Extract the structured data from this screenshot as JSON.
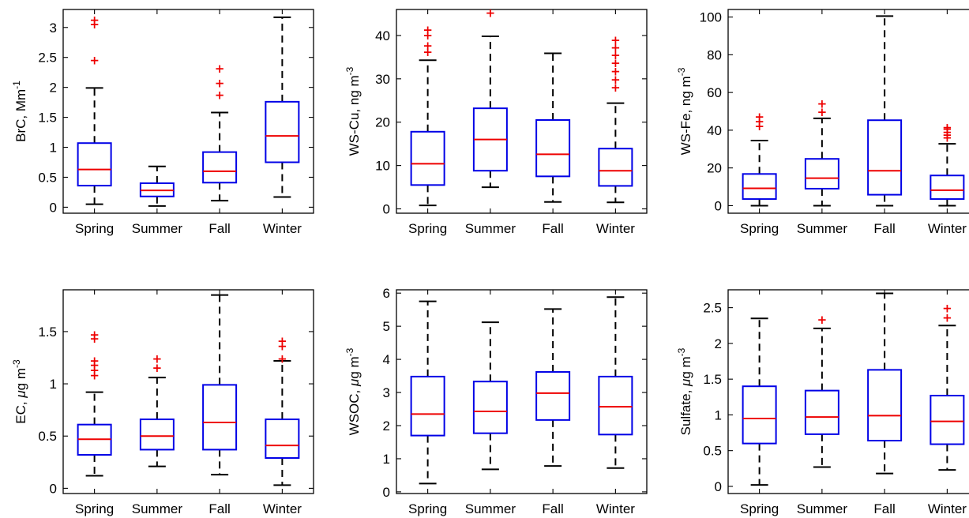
{
  "chart_data": [
    {
      "type": "box",
      "ylabel": {
        "base": "BrC, Mm",
        "sup": "-1",
        "mu": false
      },
      "ylim": [
        -0.1,
        3.3
      ],
      "yticks": [
        0,
        0.5,
        1,
        1.5,
        2,
        2.5,
        3
      ],
      "ytick_labels": [
        "0",
        "0.5",
        "1",
        "1.5",
        "2",
        "2.5",
        "3"
      ],
      "categories": [
        "Spring",
        "Summer",
        "Fall",
        "Winter"
      ],
      "boxes": [
        {
          "low": 0.05,
          "q1": 0.36,
          "median": 0.63,
          "q3": 1.07,
          "high": 1.99,
          "outliers": [
            2.45,
            3.05,
            3.12
          ]
        },
        {
          "low": 0.02,
          "q1": 0.18,
          "median": 0.28,
          "q3": 0.4,
          "high": 0.68,
          "outliers": []
        },
        {
          "low": 0.11,
          "q1": 0.41,
          "median": 0.6,
          "q3": 0.92,
          "high": 1.58,
          "outliers": [
            1.87,
            2.07,
            2.31
          ]
        },
        {
          "low": 0.17,
          "q1": 0.75,
          "median": 1.19,
          "q3": 1.76,
          "high": 3.17,
          "outliers": []
        }
      ]
    },
    {
      "type": "box",
      "ylabel": {
        "base": "WS-Cu, ng m",
        "sup": "-3",
        "mu": false
      },
      "ylim": [
        -1,
        46
      ],
      "yticks": [
        0,
        10,
        20,
        30,
        40
      ],
      "ytick_labels": [
        "0",
        "10",
        "20",
        "30",
        "40"
      ],
      "categories": [
        "Spring",
        "Summer",
        "Fall",
        "Winter"
      ],
      "boxes": [
        {
          "low": 0.8,
          "q1": 5.5,
          "median": 10.4,
          "q3": 17.8,
          "high": 34.3,
          "outliers": [
            36.2,
            37.6,
            40.0,
            41.3
          ]
        },
        {
          "low": 5.0,
          "q1": 8.8,
          "median": 16.0,
          "q3": 23.2,
          "high": 39.8,
          "outliers": [
            45.2
          ]
        },
        {
          "low": 1.6,
          "q1": 7.5,
          "median": 12.6,
          "q3": 20.5,
          "high": 35.9,
          "outliers": []
        },
        {
          "low": 1.5,
          "q1": 5.3,
          "median": 8.8,
          "q3": 13.9,
          "high": 24.4,
          "outliers": [
            28.0,
            29.8,
            31.7,
            33.6,
            35.4,
            37.2,
            38.9
          ]
        }
      ]
    },
    {
      "type": "box",
      "ylabel": {
        "base": "WS-Fe, ng m",
        "sup": "-3",
        "mu": false
      },
      "ylim": [
        -4,
        104
      ],
      "yticks": [
        0,
        20,
        40,
        60,
        80,
        100
      ],
      "ytick_labels": [
        "0",
        "20",
        "40",
        "60",
        "80",
        "100"
      ],
      "categories": [
        "Spring",
        "Summer",
        "Fall",
        "Winter"
      ],
      "boxes": [
        {
          "low": 0,
          "q1": 3.5,
          "median": 9.2,
          "q3": 16.8,
          "high": 34.5,
          "outliers": [
            42,
            44.5,
            47
          ]
        },
        {
          "low": 0,
          "q1": 9.0,
          "median": 14.6,
          "q3": 24.8,
          "high": 46.3,
          "outliers": [
            49.5,
            54
          ]
        },
        {
          "low": 0,
          "q1": 5.8,
          "median": 18.5,
          "q3": 45.3,
          "high": 100.5,
          "outliers": []
        },
        {
          "low": 0,
          "q1": 3.5,
          "median": 8.2,
          "q3": 16.0,
          "high": 32.8,
          "outliers": [
            36,
            37.5,
            39,
            40.5,
            41.5
          ]
        }
      ]
    },
    {
      "type": "box",
      "ylabel": {
        "base": "EC, ",
        "mu": true,
        "after": "g m",
        "sup": "-3"
      },
      "ylim": [
        -0.05,
        1.9
      ],
      "yticks": [
        0,
        0.5,
        1,
        1.5
      ],
      "ytick_labels": [
        "0",
        "0.5",
        "1",
        "1.5"
      ],
      "categories": [
        "Spring",
        "Summer",
        "Fall",
        "Winter"
      ],
      "boxes": [
        {
          "low": 0.12,
          "q1": 0.32,
          "median": 0.47,
          "q3": 0.61,
          "high": 0.92,
          "outliers": [
            1.08,
            1.13,
            1.18,
            1.22,
            1.43,
            1.47
          ]
        },
        {
          "low": 0.21,
          "q1": 0.37,
          "median": 0.5,
          "q3": 0.66,
          "high": 1.06,
          "outliers": [
            1.15,
            1.24
          ]
        },
        {
          "low": 0.13,
          "q1": 0.37,
          "median": 0.63,
          "q3": 0.99,
          "high": 1.85,
          "outliers": []
        },
        {
          "low": 0.03,
          "q1": 0.29,
          "median": 0.41,
          "q3": 0.66,
          "high": 1.22,
          "outliers": [
            1.24,
            1.36,
            1.41
          ]
        }
      ]
    },
    {
      "type": "box",
      "ylabel": {
        "base": "WSOC, ",
        "mu": true,
        "after": "g m",
        "sup": "-3"
      },
      "ylim": [
        -0.05,
        6.1
      ],
      "yticks": [
        0,
        1,
        2,
        3,
        4,
        5,
        6
      ],
      "ytick_labels": [
        "0",
        "1",
        "2",
        "3",
        "4",
        "5",
        "6"
      ],
      "categories": [
        "Spring",
        "Summer",
        "Fall",
        "Winter"
      ],
      "boxes": [
        {
          "low": 0.25,
          "q1": 1.7,
          "median": 2.35,
          "q3": 3.48,
          "high": 5.75,
          "outliers": []
        },
        {
          "low": 0.68,
          "q1": 1.77,
          "median": 2.43,
          "q3": 3.33,
          "high": 5.12,
          "outliers": []
        },
        {
          "low": 0.78,
          "q1": 2.17,
          "median": 2.98,
          "q3": 3.62,
          "high": 5.52,
          "outliers": []
        },
        {
          "low": 0.72,
          "q1": 1.73,
          "median": 2.57,
          "q3": 3.48,
          "high": 5.88,
          "outliers": []
        }
      ]
    },
    {
      "type": "box",
      "ylabel": {
        "base": "Sulfate, ",
        "mu": true,
        "after": "g m",
        "sup": "-3"
      },
      "ylim": [
        -0.1,
        2.75
      ],
      "yticks": [
        0,
        0.5,
        1,
        1.5,
        2,
        2.5
      ],
      "ytick_labels": [
        "0",
        "0.5",
        "1",
        "1.5",
        "2",
        "2.5"
      ],
      "categories": [
        "Spring",
        "Summer",
        "Fall",
        "Winter"
      ],
      "boxes": [
        {
          "low": 0.02,
          "q1": 0.6,
          "median": 0.95,
          "q3": 1.4,
          "high": 2.35,
          "outliers": []
        },
        {
          "low": 0.27,
          "q1": 0.73,
          "median": 0.97,
          "q3": 1.34,
          "high": 2.21,
          "outliers": [
            2.33
          ]
        },
        {
          "low": 0.18,
          "q1": 0.64,
          "median": 0.99,
          "q3": 1.63,
          "high": 2.7,
          "outliers": []
        },
        {
          "low": 0.23,
          "q1": 0.59,
          "median": 0.91,
          "q3": 1.27,
          "high": 2.25,
          "outliers": [
            2.36,
            2.49
          ]
        }
      ]
    }
  ]
}
